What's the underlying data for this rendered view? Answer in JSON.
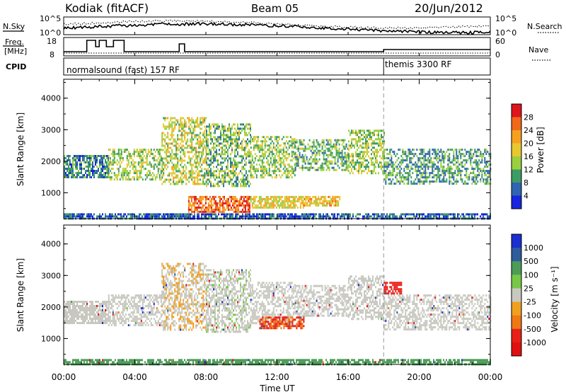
{
  "header": {
    "station": "Kodiak (fitACF)",
    "beam": "Beam 05",
    "date": "20/Jun/2012"
  },
  "noise_panel": {
    "left_label": "N.Sky",
    "right_label": "N.Search",
    "left_ticks": [
      "10^5",
      "10^0"
    ],
    "right_ticks": [
      "10^5",
      "10^0"
    ]
  },
  "freq_panel": {
    "left_label_line1": "Freq.",
    "left_label_line2": "[MHz]",
    "right_label": "Nave",
    "left_ticks": [
      "18",
      "8"
    ],
    "right_ticks": [
      "60",
      "0"
    ]
  },
  "cpid_panel": {
    "label": "CPID",
    "modes": [
      {
        "name": "normalsound (fast) 157 RF",
        "start_hour": 0
      },
      {
        "name": "themis 3300 RF",
        "start_hour": 18.0
      }
    ]
  },
  "power_colorbar": {
    "label": "Power [dB]",
    "ticks": [
      "28",
      "24",
      "20",
      "16",
      "12",
      "8",
      "4"
    ],
    "colors": [
      "#e0141c",
      "#f06818",
      "#f5a020",
      "#e8c830",
      "#9ad040",
      "#3c9c64",
      "#2f64b0",
      "#1824e0"
    ]
  },
  "velocity_colorbar": {
    "label": "Velocity [m s⁻¹]",
    "ticks": [
      "1000",
      "500",
      "100",
      "25",
      "-25",
      "-100",
      "-500",
      "-1000"
    ],
    "colors": [
      "#1c2ed0",
      "#2e5c9c",
      "#4c9c58",
      "#78c848",
      "#c8c8c0",
      "#f0a020",
      "#f07814",
      "#e82018",
      "#e01010"
    ]
  },
  "x_axis": {
    "label": "Time UT",
    "ticks": [
      "00:00",
      "04:00",
      "08:00",
      "12:00",
      "16:00",
      "20:00",
      "00:00"
    ]
  },
  "chart_data": [
    {
      "type": "heatmap",
      "title": "Power",
      "xlabel": "Time UT",
      "ylabel": "Slant Range [km]",
      "xlim_hours": [
        0,
        24
      ],
      "ylim": [
        180,
        4600
      ],
      "yticks": [
        1000,
        2000,
        3000,
        4000
      ],
      "zlabel": "Power [dB]",
      "zlim": [
        0,
        32
      ],
      "scatter_bands": [
        {
          "t_start": 0.0,
          "t_end": 2.5,
          "r_low": 1500,
          "r_high": 2200,
          "power": 8
        },
        {
          "t_start": 2.5,
          "t_end": 5.5,
          "r_low": 1400,
          "r_high": 2400,
          "power": 14
        },
        {
          "t_start": 5.5,
          "t_end": 8.0,
          "r_low": 1300,
          "r_high": 3400,
          "power": 16
        },
        {
          "t_start": 8.0,
          "t_end": 10.5,
          "r_low": 1200,
          "r_high": 3200,
          "power": 12
        },
        {
          "t_start": 10.5,
          "t_end": 13.0,
          "r_low": 1500,
          "r_high": 2800,
          "power": 14
        },
        {
          "t_start": 13.0,
          "t_end": 16.0,
          "r_low": 1700,
          "r_high": 2700,
          "power": 12
        },
        {
          "t_start": 16.0,
          "t_end": 18.0,
          "r_low": 1600,
          "r_high": 3000,
          "power": 14
        },
        {
          "t_start": 18.0,
          "t_end": 24.0,
          "r_low": 1300,
          "r_high": 2400,
          "power": 10
        },
        {
          "t_start": 7.0,
          "t_end": 10.5,
          "r_low": 400,
          "r_high": 900,
          "power": 26
        },
        {
          "t_start": 10.5,
          "t_end": 13.5,
          "r_low": 500,
          "r_high": 900,
          "power": 18
        },
        {
          "t_start": 13.5,
          "t_end": 15.5,
          "r_low": 600,
          "r_high": 900,
          "power": 20
        },
        {
          "t_start": 0.0,
          "t_end": 24.0,
          "r_low": 180,
          "r_high": 350,
          "power": 6
        }
      ]
    },
    {
      "type": "heatmap",
      "title": "Velocity",
      "xlabel": "Time UT",
      "ylabel": "Slant Range [km]",
      "xlim_hours": [
        0,
        24
      ],
      "ylim": [
        180,
        4600
      ],
      "yticks": [
        1000,
        2000,
        3000,
        4000
      ],
      "zlabel": "Velocity [m s⁻¹]",
      "zlim": [
        -1000,
        1000
      ],
      "scatter_bands": [
        {
          "t_start": 0.0,
          "t_end": 2.5,
          "r_low": 1500,
          "r_high": 2200,
          "velocity": 0
        },
        {
          "t_start": 2.5,
          "t_end": 5.5,
          "r_low": 1400,
          "r_high": 2400,
          "velocity": 0
        },
        {
          "t_start": 5.5,
          "t_end": 8.0,
          "r_low": 1300,
          "r_high": 3400,
          "velocity": -20
        },
        {
          "t_start": 8.0,
          "t_end": 10.5,
          "r_low": 1200,
          "r_high": 3200,
          "velocity": 10
        },
        {
          "t_start": 10.5,
          "t_end": 13.0,
          "r_low": 1500,
          "r_high": 2800,
          "velocity": 0
        },
        {
          "t_start": 13.0,
          "t_end": 16.0,
          "r_low": 1700,
          "r_high": 2700,
          "velocity": 0
        },
        {
          "t_start": 16.0,
          "t_end": 18.0,
          "r_low": 1600,
          "r_high": 3000,
          "velocity": 0
        },
        {
          "t_start": 18.0,
          "t_end": 24.0,
          "r_low": 1300,
          "r_high": 2400,
          "velocity": 0
        },
        {
          "t_start": 11.0,
          "t_end": 13.5,
          "r_low": 1300,
          "r_high": 1700,
          "velocity": -300
        },
        {
          "t_start": 18.0,
          "t_end": 19.0,
          "r_low": 2400,
          "r_high": 2800,
          "velocity": -700
        },
        {
          "t_start": 0.0,
          "t_end": 24.0,
          "r_low": 180,
          "r_high": 350,
          "velocity": 150
        }
      ]
    }
  ]
}
